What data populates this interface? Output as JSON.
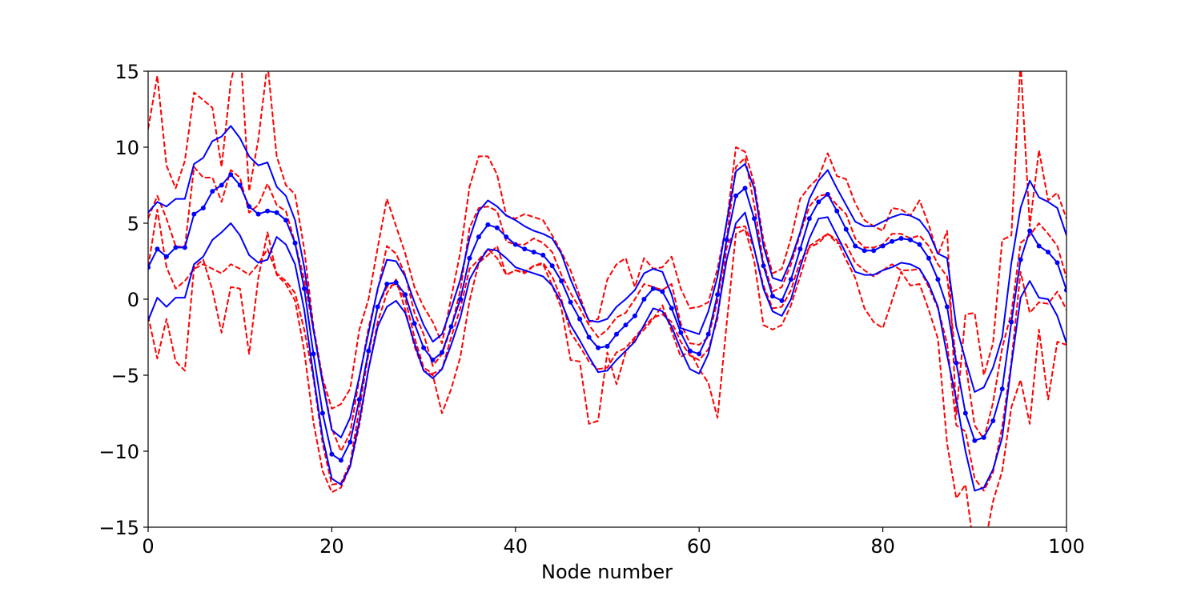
{
  "chart_data": {
    "type": "line",
    "title": "",
    "xlabel": "Node number",
    "ylabel": "",
    "xlim": [
      0,
      100
    ],
    "ylim": [
      -15,
      15
    ],
    "xticks": [
      0,
      20,
      40,
      60,
      80,
      100
    ],
    "xtick_labels": [
      "0",
      "20",
      "40",
      "60",
      "80",
      "100"
    ],
    "yticks": [
      -15,
      -10,
      -5,
      0,
      5,
      10,
      15
    ],
    "ytick_labels": [
      "−15",
      "−10",
      "−5",
      "0",
      "5",
      "10",
      "15"
    ],
    "grid": false,
    "legend": "none",
    "x": [
      0,
      1,
      2,
      3,
      4,
      5,
      6,
      7,
      8,
      9,
      10,
      11,
      12,
      13,
      14,
      15,
      16,
      17,
      18,
      19,
      20,
      21,
      22,
      23,
      24,
      25,
      26,
      27,
      28,
      29,
      30,
      31,
      32,
      33,
      34,
      35,
      36,
      37,
      38,
      39,
      40,
      41,
      42,
      43,
      44,
      45,
      46,
      47,
      48,
      49,
      50,
      51,
      52,
      53,
      54,
      55,
      56,
      57,
      58,
      59,
      60,
      61,
      62,
      63,
      64,
      65,
      66,
      67,
      68,
      69,
      70,
      71,
      72,
      73,
      74,
      75,
      76,
      77,
      78,
      79,
      80,
      81,
      82,
      83,
      84,
      85,
      86,
      87,
      88,
      89,
      90,
      91,
      92,
      93,
      94,
      95,
      96,
      97,
      98,
      99,
      100
    ],
    "series": [
      {
        "role": "mean",
        "color": "#0000ff",
        "style": "solid",
        "markers": true,
        "values": [
          2.1,
          3.3,
          2.8,
          3.4,
          3.4,
          5.6,
          6.0,
          7.1,
          7.5,
          8.2,
          7.5,
          6.1,
          5.6,
          5.8,
          5.7,
          5.2,
          3.7,
          0.7,
          -3.6,
          -7.5,
          -10.2,
          -10.6,
          -9.4,
          -6.6,
          -3.4,
          -0.5,
          1.0,
          1.1,
          0.3,
          -1.6,
          -3.2,
          -4.0,
          -3.5,
          -1.8,
          0.0,
          2.7,
          4.1,
          4.9,
          4.7,
          4.1,
          3.6,
          3.3,
          3.1,
          2.9,
          2.2,
          1.2,
          -0.2,
          -1.3,
          -2.5,
          -3.2,
          -3.1,
          -2.3,
          -1.7,
          -1.1,
          0.0,
          0.7,
          0.5,
          -0.6,
          -2.2,
          -3.4,
          -3.6,
          -2.3,
          0.3,
          3.9,
          6.8,
          7.3,
          5.3,
          2.2,
          0.2,
          -0.1,
          1.3,
          3.3,
          5.3,
          6.4,
          6.9,
          5.8,
          4.6,
          3.5,
          3.2,
          3.2,
          3.5,
          3.8,
          4.0,
          3.9,
          3.6,
          2.7,
          1.3,
          -0.5,
          -4.2,
          -7.5,
          -9.3,
          -9.1,
          -8.0,
          -5.9,
          -1.5,
          2.6,
          4.5,
          3.5,
          3.1,
          2.4,
          0.6
        ]
      },
      {
        "role": "upper-band",
        "color": "#0000ff",
        "style": "solid",
        "markers": false,
        "values": [
          5.7,
          6.4,
          6.1,
          6.6,
          6.6,
          8.9,
          9.3,
          10.4,
          10.7,
          11.4,
          10.6,
          9.4,
          8.8,
          9.0,
          7.4,
          6.8,
          5.2,
          2.1,
          -2.0,
          -5.5,
          -8.6,
          -9.1,
          -7.8,
          -5.1,
          -2.2,
          0.7,
          2.6,
          2.5,
          1.5,
          -0.2,
          -1.7,
          -2.8,
          -2.3,
          -0.6,
          1.3,
          4.0,
          5.8,
          6.5,
          6.1,
          5.5,
          5.2,
          4.8,
          4.5,
          4.3,
          4.0,
          3.0,
          1.3,
          -0.1,
          -1.4,
          -1.5,
          -1.3,
          -0.5,
          0.0,
          0.6,
          1.7,
          2.0,
          1.8,
          0.3,
          -1.9,
          -2.1,
          -2.3,
          -0.8,
          1.5,
          5.1,
          8.4,
          8.9,
          7.3,
          3.5,
          1.4,
          1.2,
          2.6,
          4.4,
          6.6,
          7.8,
          8.5,
          7.3,
          6.2,
          5.1,
          4.8,
          4.8,
          5.1,
          5.4,
          5.6,
          5.5,
          5.2,
          4.4,
          3.0,
          2.7,
          -1.8,
          -4.0,
          -6.1,
          -5.8,
          -4.5,
          -2.5,
          2.4,
          6.0,
          7.8,
          6.7,
          6.4,
          6.0,
          4.2
        ]
      },
      {
        "role": "lower-band",
        "color": "#0000ff",
        "style": "solid",
        "markers": false,
        "values": [
          -1.4,
          0.1,
          -0.5,
          0.1,
          0.1,
          2.3,
          2.8,
          3.9,
          4.4,
          5.0,
          4.2,
          2.9,
          2.4,
          2.6,
          4.1,
          3.6,
          2.3,
          -0.7,
          -5.0,
          -9.1,
          -11.8,
          -12.2,
          -11.0,
          -8.0,
          -4.6,
          -1.8,
          -0.5,
          -0.1,
          -0.9,
          -2.9,
          -4.7,
          -5.2,
          -4.6,
          -3.0,
          -1.2,
          1.3,
          2.4,
          3.3,
          3.2,
          2.7,
          2.1,
          1.9,
          1.7,
          1.5,
          0.9,
          -0.2,
          -1.7,
          -2.7,
          -3.8,
          -4.8,
          -4.7,
          -4.0,
          -3.4,
          -2.8,
          -1.7,
          -0.6,
          -0.8,
          -1.8,
          -3.3,
          -4.6,
          -4.9,
          -3.6,
          -1.0,
          2.6,
          5.0,
          5.7,
          3.3,
          0.7,
          -0.8,
          -1.1,
          0.0,
          2.1,
          4.0,
          5.3,
          5.4,
          4.2,
          3.0,
          1.8,
          1.6,
          1.6,
          1.9,
          2.1,
          2.4,
          2.3,
          2.0,
          1.0,
          -0.5,
          -3.7,
          -6.6,
          -10.0,
          -12.6,
          -12.4,
          -11.2,
          -9.1,
          -4.3,
          0.1,
          1.2,
          0.1,
          0.0,
          -1.1,
          -2.9
        ]
      },
      {
        "role": "upper-outer-band",
        "color": "#ff0000",
        "style": "dashed",
        "markers": false,
        "values": [
          11.2,
          14.7,
          8.8,
          7.3,
          9.1,
          13.6,
          13.1,
          12.6,
          8.7,
          14.3,
          16.8,
          7.1,
          10.5,
          15.5,
          9.4,
          7.5,
          6.9,
          3.3,
          -1.8,
          -5.2,
          -7.2,
          -6.9,
          -5.9,
          -2.0,
          0.0,
          3.4,
          6.6,
          4.8,
          3.0,
          0.8,
          -0.5,
          -1.5,
          -2.9,
          0.1,
          3.1,
          7.4,
          9.4,
          9.4,
          8.2,
          5.5,
          5.3,
          5.6,
          5.4,
          5.2,
          4.2,
          3.1,
          1.9,
          0.2,
          -1.5,
          -1.3,
          1.3,
          2.3,
          2.7,
          0.8,
          2.7,
          2.0,
          2.1,
          2.8,
          0.7,
          -0.6,
          -0.5,
          -0.2,
          2.0,
          5.0,
          10.0,
          9.7,
          7.6,
          3.9,
          1.7,
          2.0,
          4.0,
          6.6,
          7.4,
          8.0,
          9.6,
          8.1,
          7.9,
          6.3,
          5.2,
          4.8,
          4.5,
          6.0,
          5.9,
          5.5,
          6.5,
          4.9,
          2.9,
          4.5,
          -7.6,
          -1.0,
          -0.9,
          -5.0,
          -2.9,
          3.9,
          4.2,
          15.6,
          4.8,
          9.8,
          6.5,
          7.0,
          5.3
        ]
      },
      {
        "role": "upper-inner-band",
        "color": "#ff0000",
        "style": "dashed",
        "markers": false,
        "values": [
          5.3,
          6.8,
          5.3,
          3.5,
          3.4,
          8.7,
          8.0,
          8.0,
          6.4,
          8.5,
          8.0,
          5.7,
          6.2,
          7.6,
          6.2,
          5.8,
          3.7,
          1.3,
          -2.0,
          -5.3,
          -8.5,
          -10.0,
          -8.8,
          -5.2,
          -1.9,
          0.6,
          3.5,
          3.0,
          1.6,
          -0.9,
          -2.3,
          -4.4,
          -3.6,
          -1.9,
          0.6,
          4.7,
          6.0,
          6.1,
          5.8,
          3.8,
          3.6,
          3.6,
          4.0,
          3.7,
          3.1,
          1.6,
          0.4,
          -0.6,
          -1.7,
          -2.5,
          -2.0,
          -1.2,
          -0.9,
          0.0,
          1.0,
          0.8,
          0.6,
          1.0,
          -1.6,
          -2.9,
          -3.0,
          -2.5,
          -0.1,
          4.0,
          8.7,
          9.3,
          6.2,
          2.4,
          0.5,
          0.8,
          2.3,
          4.3,
          6.1,
          6.8,
          6.9,
          6.2,
          5.6,
          4.0,
          3.4,
          3.4,
          3.6,
          4.3,
          4.3,
          4.0,
          4.2,
          3.5,
          2.3,
          1.5,
          -4.2,
          -4.2,
          -8.3,
          -9.2,
          -6.8,
          -3.2,
          -0.9,
          3.7,
          4.2,
          5.0,
          4.3,
          3.5,
          1.4
        ]
      },
      {
        "role": "lower-inner-band",
        "color": "#ff0000",
        "style": "dashed",
        "markers": false,
        "values": [
          2.1,
          5.9,
          2.1,
          0.7,
          1.2,
          2.0,
          2.3,
          2.0,
          1.7,
          2.3,
          2.0,
          1.6,
          2.3,
          3.3,
          1.7,
          1.2,
          0.4,
          -2.0,
          -5.2,
          -9.5,
          -12.2,
          -12.1,
          -10.8,
          -7.2,
          -3.6,
          -0.5,
          0.8,
          1.0,
          0.0,
          -2.5,
          -4.5,
          -4.9,
          -4.6,
          -2.5,
          -0.6,
          2.0,
          2.6,
          3.3,
          2.7,
          1.6,
          1.9,
          1.8,
          2.2,
          2.4,
          1.5,
          0.0,
          -2.2,
          -3.1,
          -4.1,
          -4.6,
          -4.5,
          -3.5,
          -3.2,
          -2.5,
          -1.8,
          -1.2,
          -1.0,
          -1.5,
          -2.8,
          -3.7,
          -4.0,
          -3.3,
          -1.3,
          3.4,
          4.7,
          4.8,
          3.3,
          0.9,
          -0.6,
          -0.5,
          0.6,
          2.5,
          3.4,
          3.7,
          4.3,
          3.7,
          3.6,
          2.4,
          1.9,
          1.5,
          1.9,
          2.3,
          1.9,
          1.9,
          2.0,
          0.8,
          -0.6,
          -2.9,
          -8.3,
          -8.7,
          -11.8,
          -12.6,
          -11.4,
          -8.4,
          -4.1,
          1.8,
          -0.9,
          -0.2,
          -0.3,
          0.5,
          -0.7
        ]
      },
      {
        "role": "lower-outer-band",
        "color": "#ff0000",
        "style": "dashed",
        "markers": false,
        "values": [
          -1.1,
          -3.9,
          -1.3,
          -4.1,
          -4.7,
          2.1,
          2.6,
          0.6,
          -2.2,
          0.8,
          0.7,
          -3.6,
          1.4,
          4.4,
          1.6,
          1.0,
          -0.1,
          -3.4,
          -8.1,
          -11.3,
          -12.7,
          -12.4,
          -11.0,
          -8.3,
          -4.6,
          -1.5,
          0.4,
          1.3,
          -0.7,
          -3.1,
          -4.7,
          -5.0,
          -7.5,
          -5.9,
          -3.8,
          -0.1,
          2.4,
          2.9,
          3.5,
          1.6,
          1.9,
          1.7,
          2.2,
          2.3,
          0.9,
          -0.6,
          -4.0,
          -4.1,
          -8.2,
          -8.0,
          -3.5,
          -5.6,
          -3.5,
          -2.6,
          -2.0,
          -1.3,
          -0.4,
          -2.1,
          -3.8,
          -3.4,
          -4.6,
          -5.5,
          -7.8,
          -1.6,
          4.3,
          4.6,
          2.5,
          -1.7,
          -2.0,
          -1.7,
          -0.4,
          1.5,
          3.5,
          3.9,
          4.3,
          3.9,
          2.6,
          1.4,
          -0.6,
          -1.5,
          -1.9,
          -0.1,
          1.8,
          0.9,
          1.0,
          -0.7,
          -2.6,
          -9.5,
          -13.1,
          -12.2,
          -16.8,
          -16.5,
          -13.3,
          -11.3,
          -7.1,
          -5.3,
          -8.2,
          -2.0,
          -6.6,
          -2.8,
          -3.0
        ]
      }
    ]
  }
}
